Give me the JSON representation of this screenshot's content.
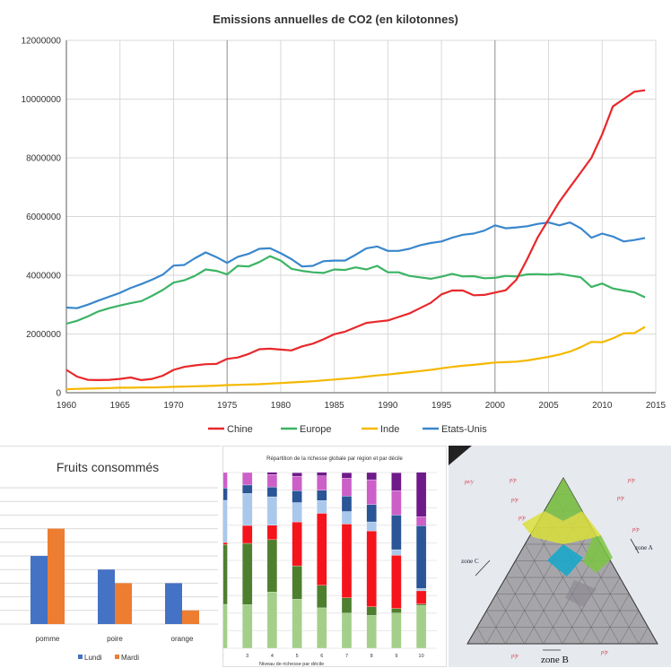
{
  "chart_data": [
    {
      "type": "line",
      "title": "Emissions annuelles de CO2 (en kilotonnes)",
      "xlabel": "",
      "ylabel": "",
      "xlim": [
        1960,
        2015
      ],
      "ylim": [
        0,
        12000000
      ],
      "xticks": [
        1960,
        1965,
        1970,
        1975,
        1980,
        1985,
        1990,
        1995,
        2000,
        2005,
        2010,
        2015
      ],
      "yticks": [
        0,
        2000000,
        4000000,
        6000000,
        8000000,
        10000000,
        12000000
      ],
      "grid": true,
      "legend": "bottom",
      "x_start": 1960,
      "series": [
        {
          "name": "Chine",
          "color": "#e8282b",
          "values": [
            780000,
            550000,
            440000,
            430000,
            440000,
            470000,
            520000,
            430000,
            470000,
            580000,
            780000,
            880000,
            930000,
            970000,
            980000,
            1150000,
            1200000,
            1320000,
            1480000,
            1500000,
            1470000,
            1440000,
            1580000,
            1670000,
            1820000,
            1990000,
            2080000,
            2230000,
            2380000,
            2420000,
            2460000,
            2580000,
            2700000,
            2880000,
            3060000,
            3350000,
            3480000,
            3480000,
            3320000,
            3330000,
            3410000,
            3490000,
            3850000,
            4550000,
            5300000,
            5900000,
            6500000,
            7000000,
            7500000,
            8000000,
            8800000,
            9750000,
            10000000,
            10250000,
            10300000
          ]
        },
        {
          "name": "Europe",
          "color": "#3cb464",
          "values": [
            2350000,
            2450000,
            2600000,
            2770000,
            2880000,
            2970000,
            3050000,
            3120000,
            3300000,
            3500000,
            3750000,
            3830000,
            3980000,
            4200000,
            4150000,
            4030000,
            4320000,
            4300000,
            4450000,
            4650000,
            4500000,
            4220000,
            4150000,
            4100000,
            4080000,
            4200000,
            4180000,
            4270000,
            4200000,
            4320000,
            4100000,
            4100000,
            3980000,
            3930000,
            3880000,
            3950000,
            4050000,
            3960000,
            3970000,
            3900000,
            3910000,
            3980000,
            3960000,
            4030000,
            4040000,
            4020000,
            4050000,
            3990000,
            3930000,
            3600000,
            3720000,
            3550000,
            3480000,
            3420000,
            3250000
          ]
        },
        {
          "name": "Inde",
          "color": "#f5b800",
          "values": [
            120000,
            130000,
            140000,
            150000,
            160000,
            170000,
            170000,
            180000,
            180000,
            190000,
            200000,
            210000,
            220000,
            230000,
            240000,
            260000,
            270000,
            280000,
            290000,
            310000,
            330000,
            350000,
            370000,
            390000,
            420000,
            450000,
            480000,
            510000,
            550000,
            590000,
            620000,
            660000,
            700000,
            740000,
            780000,
            830000,
            880000,
            920000,
            950000,
            990000,
            1030000,
            1040000,
            1060000,
            1100000,
            1160000,
            1220000,
            1300000,
            1400000,
            1550000,
            1730000,
            1720000,
            1850000,
            2020000,
            2030000,
            2240000
          ]
        },
        {
          "name": "Etats-Unis",
          "color": "#3a87cc",
          "values": [
            2900000,
            2880000,
            3000000,
            3140000,
            3270000,
            3400000,
            3570000,
            3700000,
            3850000,
            4020000,
            4330000,
            4350000,
            4580000,
            4780000,
            4620000,
            4420000,
            4630000,
            4730000,
            4900000,
            4920000,
            4750000,
            4550000,
            4300000,
            4320000,
            4480000,
            4500000,
            4500000,
            4700000,
            4920000,
            4980000,
            4830000,
            4830000,
            4900000,
            5020000,
            5100000,
            5150000,
            5280000,
            5380000,
            5420000,
            5520000,
            5700000,
            5600000,
            5630000,
            5670000,
            5750000,
            5800000,
            5700000,
            5800000,
            5600000,
            5280000,
            5420000,
            5320000,
            5150000,
            5200000,
            5270000
          ]
        }
      ]
    },
    {
      "type": "bar",
      "title": "Fruits consommés",
      "categories": [
        "pomme",
        "poire",
        "orange"
      ],
      "ylim": [
        0,
        10
      ],
      "grid": true,
      "legend": "bottom",
      "series": [
        {
          "name": "Lundi",
          "color": "#4472c4",
          "values": [
            5,
            4,
            3
          ]
        },
        {
          "name": "Mardi",
          "color": "#ed7d31",
          "values": [
            7,
            3,
            1
          ]
        }
      ]
    },
    {
      "type": "bar",
      "stacked": true,
      "title": "Répartition de la richesse globale par région et par décile",
      "xlabel": "Niveau de richesse par décile",
      "categories": [
        "2",
        "3",
        "4",
        "5",
        "6",
        "7",
        "8",
        "9",
        "10"
      ],
      "ylim": [
        0,
        100
      ],
      "grid": true,
      "series": [
        {
          "color": "#a3cf8a",
          "values": [
            25,
            24.8,
            32,
            27.9,
            23,
            20,
            18.7,
            20,
            24.3
          ]
        },
        {
          "color": "#4e7f2f",
          "values": [
            34,
            34.9,
            29.8,
            19,
            12.8,
            8.7,
            4.9,
            2.6,
            0.9
          ]
        },
        {
          "color": "#f5141b",
          "values": [
            1.2,
            10.2,
            8.2,
            25,
            41,
            42,
            43.2,
            30.3,
            7.5
          ]
        },
        {
          "color": "#a9c8ec",
          "values": [
            24,
            18.2,
            16.2,
            11,
            7.3,
            7.1,
            5.1,
            3.2,
            1.4
          ]
        },
        {
          "color": "#2a5597",
          "values": [
            7,
            4.8,
            5.6,
            6.8,
            5.8,
            8.8,
            9.9,
            19.7,
            35.7
          ]
        },
        {
          "color": "#cc5fc8",
          "values": [
            8.8,
            7.1,
            7.1,
            8.2,
            8.2,
            10.2,
            14.1,
            13.9,
            5.1
          ]
        },
        {
          "color": "#6e1a88",
          "values": [
            0,
            0,
            1.2,
            2,
            2,
            3.1,
            4.1,
            10.2,
            25.2
          ]
        }
      ]
    }
  ],
  "photo": {
    "description_labels": [
      "zone A",
      "zone B",
      "zone C"
    ],
    "colors": {
      "green": "#7cc443",
      "yellow": "#d9df3a",
      "cyan": "#1ba9c9",
      "grey": "#a9a9ab"
    }
  }
}
